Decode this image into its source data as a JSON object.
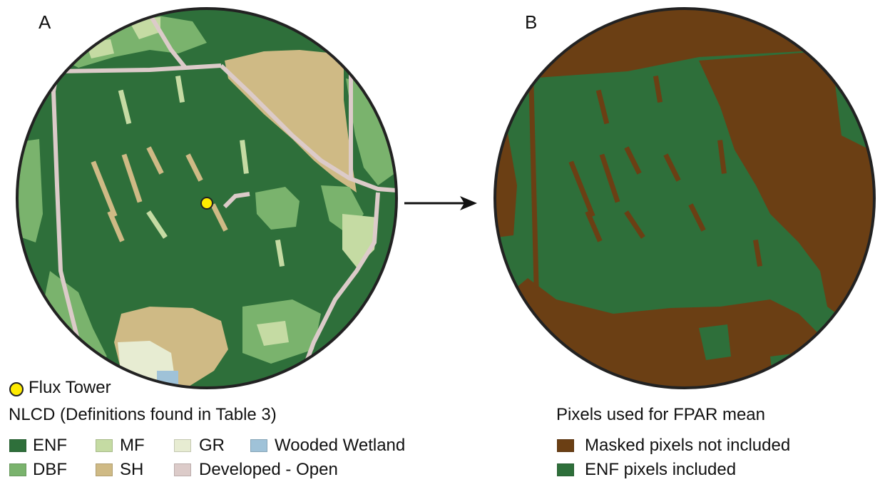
{
  "panel_a": {
    "letter": "A",
    "tower_label": "Flux Tower",
    "legend_title": "NLCD (Definitions found in Table 3)",
    "legend": [
      {
        "label": "ENF",
        "color": "#2e6f3a"
      },
      {
        "label": "MF",
        "color": "#c5dba3"
      },
      {
        "label": "GR",
        "color": "#e7ecd2"
      },
      {
        "label": "Wooded Wetland",
        "color": "#9fc2d8"
      },
      {
        "label": "DBF",
        "color": "#7ab36d"
      },
      {
        "label": "SH",
        "color": "#cfba85"
      },
      {
        "label": "Developed - Open",
        "color": "#dccbc9"
      }
    ],
    "colors": {
      "tower": "#ffeb00"
    }
  },
  "panel_b": {
    "letter": "B",
    "legend_title": "Pixels used for FPAR mean",
    "legend": [
      {
        "label": "Masked pixels not included",
        "color": "#6b3f14"
      },
      {
        "label": "ENF pixels included",
        "color": "#2e6f3a"
      }
    ]
  }
}
